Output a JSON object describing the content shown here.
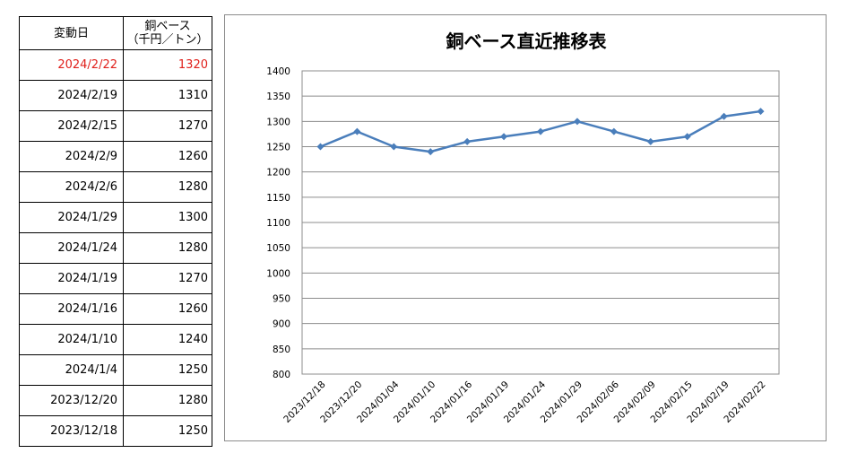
{
  "table": {
    "header_date": "変動日",
    "header_price_line1": "銅ベース",
    "header_price_line2": "（千円／トン）",
    "latest_color": "#e0201b",
    "rows": [
      {
        "date": "2024/2/22",
        "price": "1320"
      },
      {
        "date": "2024/2/19",
        "price": "1310"
      },
      {
        "date": "2024/2/15",
        "price": "1270"
      },
      {
        "date": "2024/2/9",
        "price": "1260"
      },
      {
        "date": "2024/2/6",
        "price": "1280"
      },
      {
        "date": "2024/1/29",
        "price": "1300"
      },
      {
        "date": "2024/1/24",
        "price": "1280"
      },
      {
        "date": "2024/1/19",
        "price": "1270"
      },
      {
        "date": "2024/1/16",
        "price": "1260"
      },
      {
        "date": "2024/1/10",
        "price": "1240"
      },
      {
        "date": "2024/1/4",
        "price": "1250"
      },
      {
        "date": "2023/12/20",
        "price": "1280"
      },
      {
        "date": "2023/12/18",
        "price": "1250"
      }
    ]
  },
  "chart_data": {
    "type": "line",
    "title": "銅ベース直近推移表",
    "xlabel": "",
    "ylabel": "",
    "categories": [
      "2023/12/18",
      "2023/12/20",
      "2024/01/04",
      "2024/01/10",
      "2024/01/16",
      "2024/01/19",
      "2024/01/24",
      "2024/01/29",
      "2024/02/06",
      "2024/02/09",
      "2024/02/15",
      "2024/02/19",
      "2024/02/22"
    ],
    "series": [
      {
        "values": [
          1250,
          1280,
          1250,
          1240,
          1260,
          1270,
          1280,
          1300,
          1280,
          1260,
          1270,
          1310,
          1320
        ]
      }
    ],
    "ylim": [
      800,
      1400
    ],
    "yticks": [
      800,
      850,
      900,
      950,
      1000,
      1050,
      1100,
      1150,
      1200,
      1250,
      1300,
      1350,
      1400
    ],
    "grid": true,
    "legend": "none",
    "line_color": "#4a7ebb",
    "grid_color": "#8c8c8c"
  }
}
